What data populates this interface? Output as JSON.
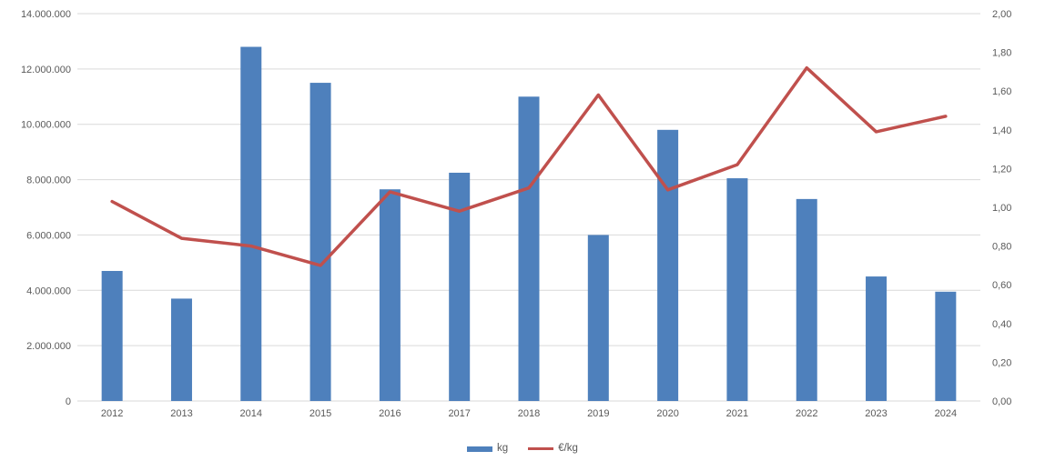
{
  "chart_data": {
    "type": "bar",
    "subtype": "combo-bar-line-dual-axis",
    "title": "",
    "xlabel": "",
    "ylabel_left": "",
    "ylabel_right": "",
    "grid": "horizontal-from-left-axis",
    "legend_position": "bottom-center",
    "categories": [
      "2012",
      "2013",
      "2014",
      "2015",
      "2016",
      "2017",
      "2018",
      "2019",
      "2020",
      "2021",
      "2022",
      "2023",
      "2024"
    ],
    "series": [
      {
        "name": "kg",
        "type": "bar",
        "axis": "left",
        "color": "#4e80bc",
        "values": [
          4700000,
          3700000,
          12800000,
          11500000,
          7650000,
          8250000,
          11000000,
          6000000,
          9800000,
          8050000,
          7300000,
          4500000,
          3950000
        ]
      },
      {
        "name": "€/kg",
        "type": "line",
        "axis": "right",
        "color": "#c0504d",
        "values": [
          1.03,
          0.84,
          0.8,
          0.7,
          1.08,
          0.98,
          1.1,
          1.58,
          1.09,
          1.22,
          1.72,
          1.39,
          1.47
        ]
      }
    ],
    "left_axis": {
      "min": 0,
      "max": 14000000,
      "step": 2000000,
      "tick_labels": [
        "0",
        "2.000.000",
        "4.000.000",
        "6.000.000",
        "8.000.000",
        "10.000.000",
        "12.000.000",
        "14.000.000"
      ]
    },
    "right_axis": {
      "min": 0,
      "max": 2,
      "step": 0.2,
      "tick_labels": [
        "0,00",
        "0,20",
        "0,40",
        "0,60",
        "0,80",
        "1,00",
        "1,20",
        "1,40",
        "1,60",
        "1,80",
        "2,00"
      ]
    }
  },
  "legend": {
    "kg_label": "kg",
    "eur_per_kg_label": "€/kg"
  },
  "colors": {
    "bar": "#4e80bc",
    "line": "#c0504d",
    "gridline": "#d9d9d9",
    "axis_line": "#d9d9d9",
    "axis_text": "#595959"
  }
}
